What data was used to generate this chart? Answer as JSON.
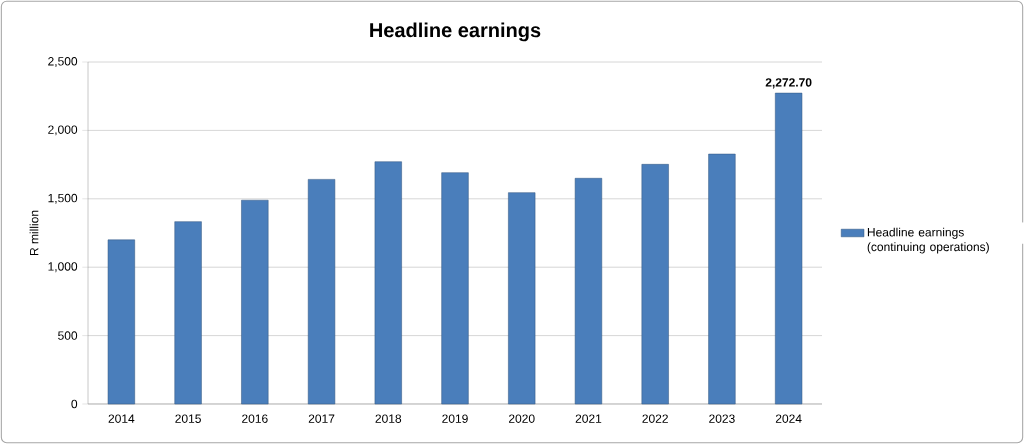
{
  "chart_data": {
    "type": "bar",
    "title": "Headline earnings",
    "ylabel": "R million",
    "categories": [
      "2014",
      "2015",
      "2016",
      "2017",
      "2018",
      "2019",
      "2020",
      "2021",
      "2022",
      "2023",
      "2024"
    ],
    "series": [
      {
        "name": "Headline earnings (continuing operations)",
        "color": "#4a7ebb",
        "values": [
          1200,
          1333,
          1490,
          1642,
          1771,
          1691,
          1545,
          1650,
          1752,
          1827,
          2272.7
        ],
        "value_labels": [
          null,
          null,
          null,
          null,
          null,
          null,
          null,
          null,
          null,
          null,
          "2,272.70"
        ]
      }
    ],
    "ylim": [
      0,
      2500
    ],
    "yticks": [
      {
        "value": 0,
        "label": "0"
      },
      {
        "value": 500,
        "label": "500"
      },
      {
        "value": 1000,
        "label": "1,000"
      },
      {
        "value": 1500,
        "label": "1,500"
      },
      {
        "value": 2000,
        "label": "2,000"
      },
      {
        "value": 2500,
        "label": "2,500"
      }
    ],
    "grid": "y",
    "legend": "right"
  }
}
